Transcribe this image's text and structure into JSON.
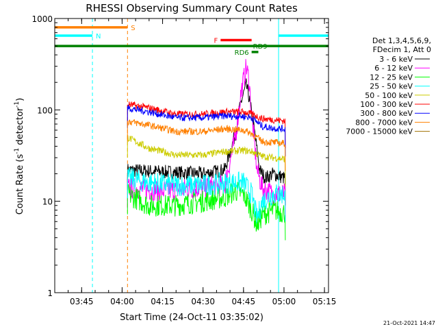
{
  "chart_data": {
    "type": "line",
    "title": "RHESSI Observing Summary Count Rates",
    "xlabel": "Start Time (24-Oct-11 03:35:02)",
    "ylabel": "Count Rate (s",
    "ylabel_sup": "-1",
    "ylabel_tail": " detector",
    "ylabel_close": ")",
    "y_scale": "log",
    "ylim": [
      1,
      1000
    ],
    "xlim": [
      "03:35:02",
      "05:16:30"
    ],
    "x_tick_labels": [
      "03:45",
      "04:00",
      "04:15",
      "04:30",
      "04:45",
      "05:00",
      "05:15"
    ],
    "x_ticks_min": [
      45,
      60,
      75,
      90,
      105,
      120,
      135
    ],
    "y_tick_labels": [
      "1",
      "10",
      "100",
      "1000"
    ],
    "y_ticks": [
      1,
      10,
      100,
      1000
    ],
    "legend_header": [
      "Det 1,3,4,5,6,9,",
      "FDecim 1, Att 0"
    ],
    "series": [
      {
        "name": "3 - 6 keV",
        "color": "#000000",
        "start": 62.0,
        "end": 120.5,
        "values": [
          [
            62,
            22
          ],
          [
            75,
            21
          ],
          [
            90,
            20
          ],
          [
            98,
            22
          ],
          [
            102,
            55
          ],
          [
            104,
            120
          ],
          [
            106,
            185
          ],
          [
            107,
            140
          ],
          [
            109,
            60
          ],
          [
            111,
            22
          ],
          [
            113,
            18
          ],
          [
            116,
            20
          ],
          [
            120,
            18
          ]
        ]
      },
      {
        "name": "6 - 12 keV",
        "color": "#ff00ff",
        "start": 62.0,
        "end": 120.5,
        "values": [
          [
            62,
            14
          ],
          [
            75,
            13
          ],
          [
            88,
            14
          ],
          [
            98,
            15
          ],
          [
            102,
            50
          ],
          [
            104,
            150
          ],
          [
            106,
            290
          ],
          [
            107,
            220
          ],
          [
            108,
            90
          ],
          [
            110,
            22
          ],
          [
            112,
            14
          ],
          [
            116,
            12
          ],
          [
            120,
            12
          ]
        ]
      },
      {
        "name": "12 - 25 keV",
        "color": "#00ff00",
        "start": 62.0,
        "end": 120.5,
        "values": [
          [
            62,
            12
          ],
          [
            70,
            9
          ],
          [
            80,
            9
          ],
          [
            90,
            10
          ],
          [
            98,
            11
          ],
          [
            102,
            13
          ],
          [
            105,
            12
          ],
          [
            108,
            8
          ],
          [
            110,
            5.5
          ],
          [
            112,
            7
          ],
          [
            116,
            8
          ],
          [
            120,
            7.5
          ]
        ]
      },
      {
        "name": "25 - 50 keV",
        "color": "#00ffff",
        "start": 62.0,
        "end": 120.5,
        "values": [
          [
            62,
            18
          ],
          [
            70,
            16
          ],
          [
            80,
            15
          ],
          [
            90,
            15
          ],
          [
            100,
            16
          ],
          [
            105,
            16
          ],
          [
            108,
            12
          ],
          [
            110,
            6.5
          ],
          [
            112,
            10
          ],
          [
            116,
            12
          ],
          [
            120,
            12
          ]
        ]
      },
      {
        "name": "50 - 100 keV",
        "color": "#cccc00",
        "start": 62.0,
        "end": 120.5,
        "values": [
          [
            62,
            50
          ],
          [
            70,
            38
          ],
          [
            80,
            32
          ],
          [
            90,
            32
          ],
          [
            98,
            35
          ],
          [
            105,
            36
          ],
          [
            108,
            35
          ],
          [
            112,
            31
          ],
          [
            116,
            30
          ],
          [
            120,
            29
          ]
        ]
      },
      {
        "name": "100 - 300 keV",
        "color": "#ff0000",
        "start": 62.0,
        "end": 120.5,
        "values": [
          [
            62,
            115
          ],
          [
            70,
            105
          ],
          [
            80,
            90
          ],
          [
            90,
            90
          ],
          [
            98,
            95
          ],
          [
            105,
            95
          ],
          [
            108,
            90
          ],
          [
            112,
            80
          ],
          [
            116,
            78
          ],
          [
            120,
            76
          ]
        ]
      },
      {
        "name": "300 - 800 keV",
        "color": "#0000ff",
        "start": 62.0,
        "end": 120.5,
        "values": [
          [
            62,
            105
          ],
          [
            70,
            95
          ],
          [
            80,
            82
          ],
          [
            90,
            82
          ],
          [
            98,
            86
          ],
          [
            105,
            85
          ],
          [
            108,
            82
          ],
          [
            112,
            66
          ],
          [
            116,
            63
          ],
          [
            120,
            62
          ]
        ]
      },
      {
        "name": "800 - 7000 keV",
        "color": "#ff8000",
        "start": 62.0,
        "end": 120.5,
        "values": [
          [
            62,
            75
          ],
          [
            70,
            68
          ],
          [
            80,
            58
          ],
          [
            90,
            58
          ],
          [
            98,
            62
          ],
          [
            105,
            60
          ],
          [
            108,
            55
          ],
          [
            112,
            45
          ],
          [
            116,
            44
          ],
          [
            120,
            43
          ]
        ]
      },
      {
        "name": "7000 - 15000 keV",
        "color": "#a07000",
        "values": []
      }
    ],
    "flags": [
      {
        "label": "S",
        "color": "#ff8000",
        "y": 800,
        "start": 35.03,
        "end": 62.0
      },
      {
        "label": "N",
        "color": "#00ffff",
        "y": 650,
        "start": 35.03,
        "end": 49.0
      },
      {
        "label": "N",
        "color": "#00ffff",
        "y": 650,
        "start": 118.0,
        "end": 136.5
      },
      {
        "label": "F",
        "color": "#ff0000",
        "y": 580,
        "start": 96.5,
        "end": 108.0
      },
      {
        "label": "RD9",
        "color": "#008000",
        "y": 500,
        "start": 35.03,
        "end": 136.5
      },
      {
        "label": "RD6",
        "color": "#008000",
        "y": 430,
        "start": 108.0,
        "end": 110.5
      }
    ],
    "vlines": [
      {
        "t": 49.0,
        "color": "#00ffff",
        "style": "dashed"
      },
      {
        "t": 62.0,
        "color": "#ff8000",
        "style": "dashed"
      },
      {
        "t": 118.0,
        "color": "#00ffff",
        "style": "solid"
      },
      {
        "t": 136.5,
        "color": "#00ffff",
        "style": "dashed"
      }
    ],
    "legend": "right",
    "grid": false
  },
  "footer": {
    "timestamp": "21-Oct-2021 14:47"
  }
}
